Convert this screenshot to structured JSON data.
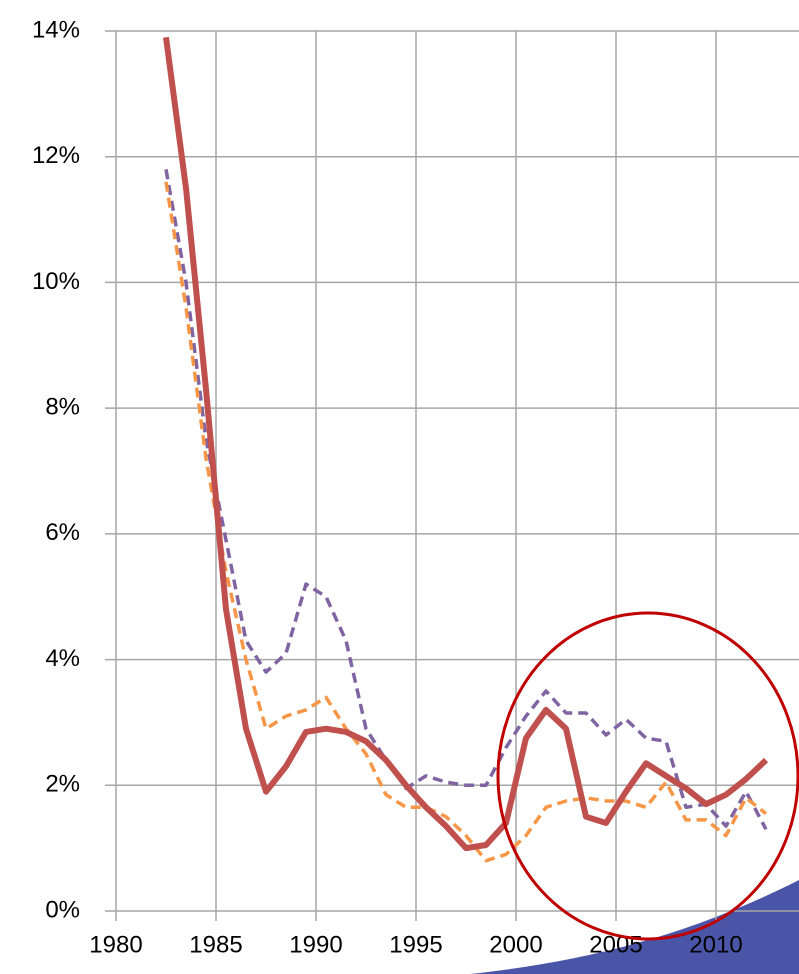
{
  "chart_data": {
    "type": "line",
    "x": [
      1982.5,
      1983.5,
      1984.5,
      1985.5,
      1986.5,
      1987.5,
      1988.5,
      1989.5,
      1990.5,
      1991.5,
      1992.5,
      1993.5,
      1994.5,
      1995.5,
      1996.5,
      1997.5,
      1998.5,
      1999.5,
      2000.5,
      2001.5,
      2002.5,
      2003.5,
      2004.5,
      2005.5,
      2006.5,
      2007.5,
      2008.5,
      2009.5,
      2010.5,
      2011.5,
      2012.5
    ],
    "series": [
      {
        "color": "#8064a2",
        "dash": true,
        "values": [
          11.8,
          10,
          7.5,
          5.9,
          4.3,
          3.8,
          4.1,
          5.2,
          5.0,
          4.3,
          2.9,
          2.4,
          1.95,
          2.15,
          2.05,
          2.0,
          2.0,
          2.6,
          3.1,
          3.5,
          3.15,
          3.15,
          2.8,
          3.05,
          2.75,
          2.7,
          1.65,
          1.7,
          1.35,
          1.9,
          1.3
        ]
      },
      {
        "color": "#f79646",
        "dash": true,
        "values": [
          11.6,
          9.6,
          7.2,
          5.4,
          4.0,
          2.9,
          3.1,
          3.2,
          3.4,
          2.9,
          2.5,
          1.85,
          1.65,
          1.65,
          1.5,
          1.2,
          0.8,
          0.9,
          1.2,
          1.65,
          1.75,
          1.8,
          1.75,
          1.75,
          1.65,
          2.05,
          1.45,
          1.45,
          1.2,
          1.8,
          1.55
        ]
      },
      {
        "color": "#c0504d",
        "dash": false,
        "values": [
          13.9,
          11.5,
          8.3,
          4.8,
          2.9,
          1.9,
          2.3,
          2.85,
          2.9,
          2.85,
          2.7,
          2.4,
          2.0,
          1.65,
          1.35,
          1.0,
          1.05,
          1.4,
          2.75,
          3.2,
          2.9,
          1.5,
          1.4,
          1.9,
          2.35,
          2.15,
          1.95,
          1.7,
          1.85,
          2.1,
          2.4
        ]
      }
    ],
    "xlim": [
      1980,
      2014
    ],
    "xticks": [
      1980,
      1985,
      1990,
      1995,
      2000,
      2005,
      2010
    ],
    "ylim": [
      0,
      14
    ],
    "yticks": [
      {
        "value": 0,
        "label": "0%"
      },
      {
        "value": 2,
        "label": "2%"
      },
      {
        "value": 4,
        "label": "4%"
      },
      {
        "value": 6,
        "label": "6%"
      },
      {
        "value": 8,
        "label": "8%"
      },
      {
        "value": 10,
        "label": "10%"
      },
      {
        "value": 12,
        "label": "12%"
      },
      {
        "value": 14,
        "label": "14%"
      }
    ],
    "grid": true
  }
}
